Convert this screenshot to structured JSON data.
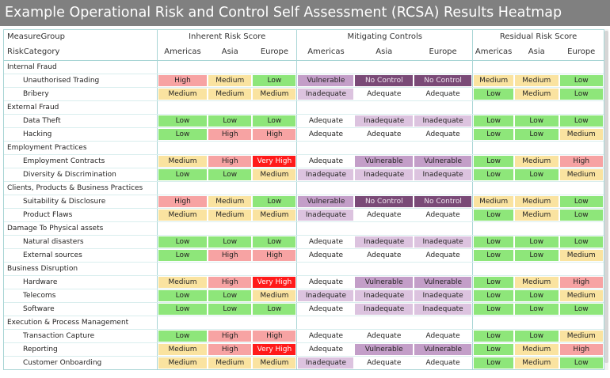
{
  "title": "Example Operational Risk and Control Self Assessment (RCSA) Results Heatmap",
  "header": {
    "measure_group_label": "MeasureGroup",
    "risk_category_label": "RiskCategory",
    "groups": [
      "Inherent Risk Score",
      "Mitigating Controls",
      "Residual Risk Score"
    ],
    "regions": [
      "Americas",
      "Asia",
      "Europe"
    ]
  },
  "colors": {
    "Low": "#8ee67a",
    "Medium": "#fae3a0",
    "High": "#f7a3a3",
    "Very High": "#ff1a1a",
    "Adequate": "#ffffff",
    "Inadequate": "#dcc3df",
    "Vulnerable": "#c39ec8",
    "No Control": "#7a4a77"
  },
  "categories": [
    {
      "name": "Internal Fraud",
      "rows": [
        {
          "name": "Unauthorised Trading",
          "values": [
            "High",
            "Medium",
            "Low",
            "Vulnerable",
            "No Control",
            "No Control",
            "Medium",
            "Medium",
            "Low"
          ]
        },
        {
          "name": "Bribery",
          "values": [
            "Medium",
            "Medium",
            "Medium",
            "Inadequate",
            "Adequate",
            "Adequate",
            "Low",
            "Medium",
            "Low"
          ]
        }
      ]
    },
    {
      "name": "External Fraud",
      "rows": [
        {
          "name": "Data Theft",
          "values": [
            "Low",
            "Low",
            "Low",
            "Adequate",
            "Inadequate",
            "Inadequate",
            "Low",
            "Low",
            "Low"
          ]
        },
        {
          "name": "Hacking",
          "values": [
            "Low",
            "High",
            "High",
            "Adequate",
            "Adequate",
            "Adequate",
            "Low",
            "Low",
            "Medium"
          ]
        }
      ]
    },
    {
      "name": "Employment Practices",
      "rows": [
        {
          "name": "Employment Contracts",
          "values": [
            "Medium",
            "High",
            "Very High",
            "Adequate",
            "Vulnerable",
            "Vulnerable",
            "Low",
            "Medium",
            "High"
          ]
        },
        {
          "name": "Diversity & Discrimination",
          "values": [
            "Low",
            "Low",
            "Medium",
            "Inadequate",
            "Inadequate",
            "Inadequate",
            "Low",
            "Low",
            "Medium"
          ]
        }
      ]
    },
    {
      "name": "Clients, Products & Business Practices",
      "rows": [
        {
          "name": "Suitability & Disclosure",
          "values": [
            "High",
            "Medium",
            "Low",
            "Vulnerable",
            "No Control",
            "No Control",
            "Medium",
            "Medium",
            "Low"
          ]
        },
        {
          "name": "Product Flaws",
          "values": [
            "Medium",
            "Medium",
            "Medium",
            "Inadequate",
            "Adequate",
            "Adequate",
            "Low",
            "Medium",
            "Low"
          ]
        }
      ]
    },
    {
      "name": "Damage To Physical assets",
      "rows": [
        {
          "name": "Natural disasters",
          "values": [
            "Low",
            "Low",
            "Low",
            "Adequate",
            "Inadequate",
            "Inadequate",
            "Low",
            "Low",
            "Low"
          ]
        },
        {
          "name": "External sources",
          "values": [
            "Low",
            "High",
            "High",
            "Adequate",
            "Adequate",
            "Adequate",
            "Low",
            "Low",
            "Medium"
          ]
        }
      ]
    },
    {
      "name": "Business Disruption",
      "rows": [
        {
          "name": "Hardware",
          "values": [
            "Medium",
            "High",
            "Very High",
            "Adequate",
            "Vulnerable",
            "Vulnerable",
            "Low",
            "Medium",
            "High"
          ]
        },
        {
          "name": "Telecoms",
          "values": [
            "Low",
            "Low",
            "Medium",
            "Inadequate",
            "Inadequate",
            "Inadequate",
            "Low",
            "Low",
            "Medium"
          ]
        },
        {
          "name": "Software",
          "values": [
            "Low",
            "Low",
            "Low",
            "Adequate",
            "Inadequate",
            "Inadequate",
            "Low",
            "Low",
            "Low"
          ]
        }
      ]
    },
    {
      "name": "Execution & Process Management",
      "rows": [
        {
          "name": "Transaction Capture",
          "values": [
            "Low",
            "High",
            "High",
            "Adequate",
            "Adequate",
            "Adequate",
            "Low",
            "Low",
            "Medium"
          ]
        },
        {
          "name": "Reporting",
          "values": [
            "Medium",
            "High",
            "Very High",
            "Adequate",
            "Vulnerable",
            "Vulnerable",
            "Low",
            "Medium",
            "High"
          ]
        },
        {
          "name": "Customer Onboarding",
          "values": [
            "Medium",
            "Medium",
            "Medium",
            "Inadequate",
            "Adequate",
            "Adequate",
            "Low",
            "Medium",
            "Low"
          ]
        }
      ]
    }
  ]
}
